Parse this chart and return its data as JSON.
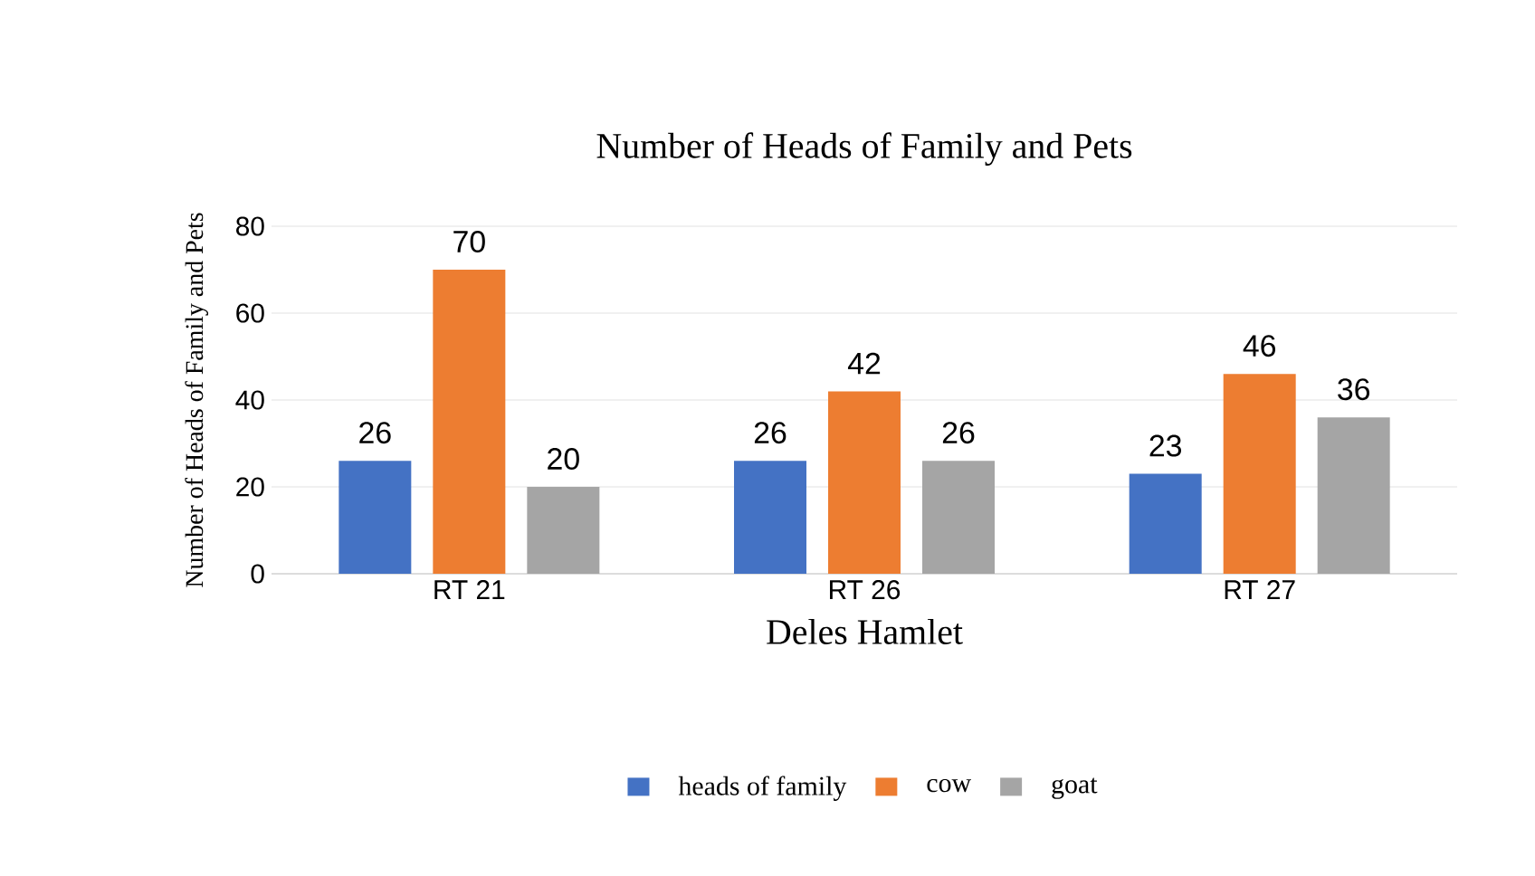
{
  "chart_data": {
    "type": "bar",
    "title": "Number of Heads of Family and Pets",
    "xlabel": "Deles Hamlet",
    "ylabel": "Number of Heads of Family and Pets",
    "categories": [
      "RT 21",
      "RT 26",
      "RT 27"
    ],
    "series": [
      {
        "name": "heads of family",
        "color": "#4472c4",
        "values": [
          26,
          26,
          23
        ]
      },
      {
        "name": "cow",
        "color": "#ed7d31",
        "values": [
          70,
          42,
          46
        ]
      },
      {
        "name": "goat",
        "color": "#a5a5a5",
        "values": [
          20,
          26,
          36
        ]
      }
    ],
    "ylim": [
      0,
      80
    ],
    "yticks": [
      0,
      20,
      40,
      60,
      80
    ],
    "grid": true,
    "legend": "bottom",
    "data_labels": true
  }
}
